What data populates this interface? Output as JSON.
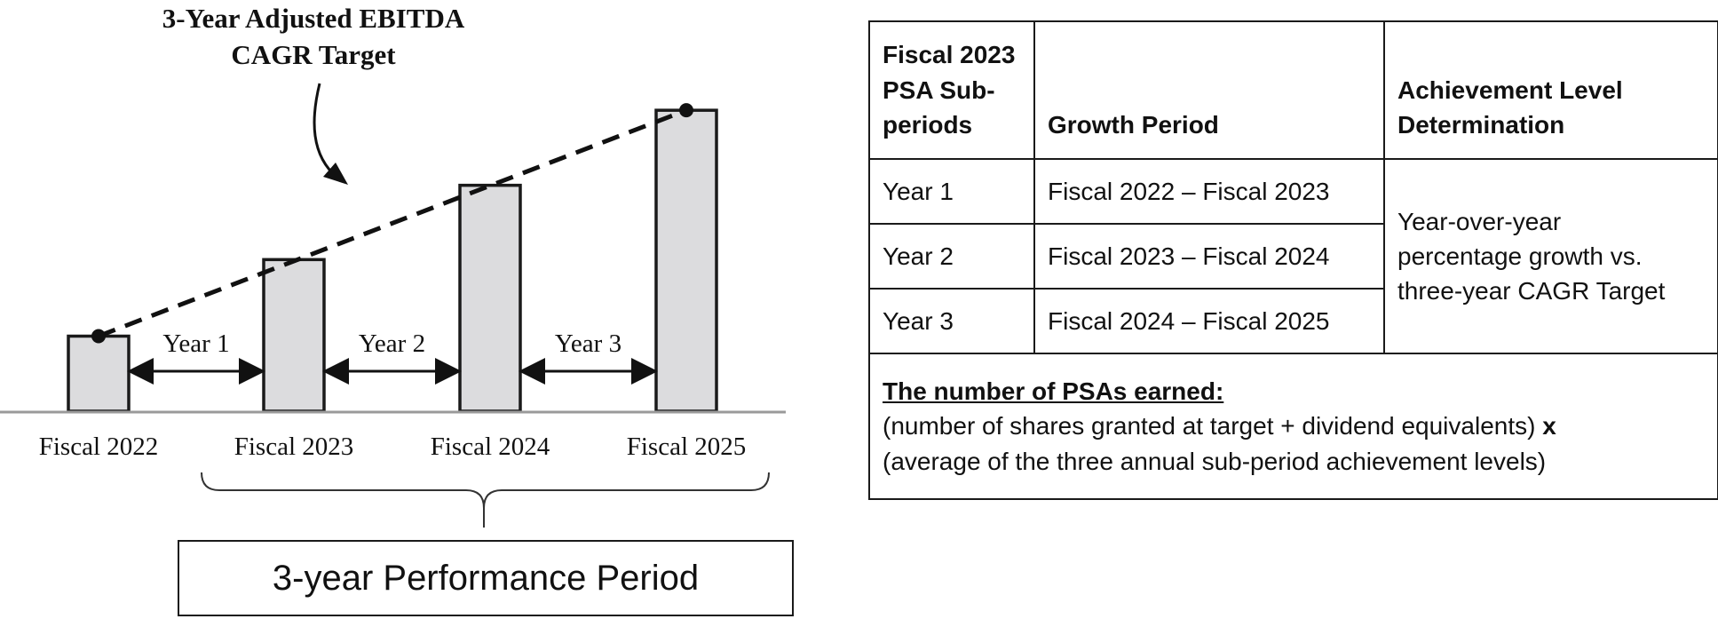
{
  "chart_data": {
    "type": "bar",
    "title": "3-Year Adjusted EBITDA CAGR Target",
    "title_lines": [
      "3-Year Adjusted EBITDA",
      "CAGR Target"
    ],
    "categories": [
      "Fiscal 2022",
      "Fiscal 2023",
      "Fiscal 2024",
      "Fiscal 2025"
    ],
    "values": [
      1.0,
      2.02,
      3.01,
      4.01
    ],
    "trend": "dashed line with dot markers connecting bar tops",
    "intervals": [
      {
        "label": "Year 1",
        "from": "Fiscal 2022",
        "to": "Fiscal 2023"
      },
      {
        "label": "Year 2",
        "from": "Fiscal 2023",
        "to": "Fiscal 2024"
      },
      {
        "label": "Year 3",
        "from": "Fiscal 2024",
        "to": "Fiscal 2025"
      }
    ],
    "bracket_label": "3-year Performance Period",
    "colors": {
      "bar_fill": "#dcdcde",
      "bar_stroke": "#1a1a1a",
      "baseline": "#9a9a9a",
      "line": "#111111"
    }
  },
  "table": {
    "headers": [
      "Fiscal 2023 PSA Sub-periods",
      "Growth Period",
      "Achievement Level Determination"
    ],
    "header_lines": [
      [
        "Fiscal 2023",
        "PSA Sub-",
        "periods"
      ],
      [
        "Growth Period"
      ],
      [
        "Achievement Level",
        "Determination"
      ]
    ],
    "rows": [
      {
        "subperiod": "Year 1",
        "growth_period": "Fiscal 2022 – Fiscal 2023"
      },
      {
        "subperiod": "Year 2",
        "growth_period": "Fiscal 2023 – Fiscal 2024"
      },
      {
        "subperiod": "Year 3",
        "growth_period": "Fiscal 2024 – Fiscal 2025"
      }
    ],
    "determination_lines": [
      "Year-over-year",
      "percentage growth vs.",
      "three-year CAGR Target"
    ],
    "footer": {
      "title": "The number of PSAs earned:",
      "line1": "(number of shares granted at target + dividend equivalents)",
      "operator": "x",
      "line2": "(average of the three annual sub-period achievement levels)"
    }
  }
}
